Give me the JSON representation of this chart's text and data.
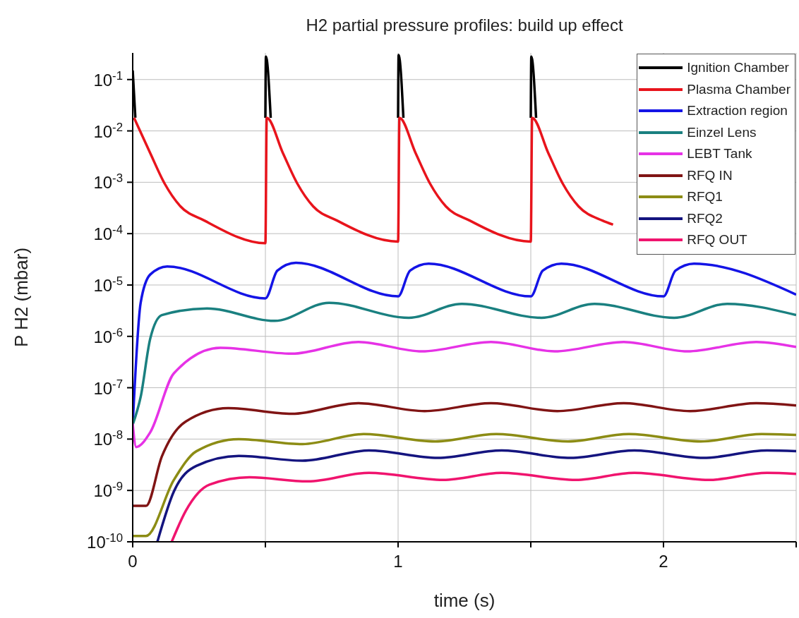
{
  "chart_data": {
    "type": "line",
    "title": "H2 partial pressure profiles: build up effect",
    "xlabel": "time (s)",
    "ylabel": "P H2 (mbar)",
    "log": "y",
    "grid": true,
    "legend": "top right",
    "marker": "none",
    "line_style": "solid",
    "xlim": [
      0,
      2.5
    ],
    "xticks": [
      0,
      {
        "value": 0.5,
        "label": null
      },
      1,
      {
        "value": 1.5,
        "label": null
      },
      2,
      {
        "value": 2.5,
        "label": null
      }
    ],
    "ylim": [
      1e-10,
      0.33
    ],
    "yticks": [
      {
        "value": 1e-10,
        "label": "10$^{-10}$"
      },
      {
        "value": 1e-09,
        "label": "10$^{-9}$"
      },
      {
        "value": 1e-08,
        "label": "10$^{-8}$"
      },
      {
        "value": 1e-07,
        "label": "10$^{-7}$"
      },
      {
        "value": 1e-06,
        "label": "10$^{-6}$"
      },
      {
        "value": 1e-05,
        "label": "10$^{-5}$"
      },
      {
        "value": 0.0001,
        "label": "10$^{-4}$"
      },
      {
        "value": 0.001,
        "label": "10$^{-3}$"
      },
      {
        "value": 0.01,
        "label": "10$^{-2}$"
      },
      {
        "value": 0.1,
        "label": "10$^{-1}$"
      }
    ],
    "series": [
      {
        "name": "Ignition Chamber",
        "color": "#000000",
        "x": [
          0,
          0.01,
          0.011,
          0.5,
          0.502,
          0.52,
          0.521,
          1.0,
          1.002,
          1.02,
          1.021,
          1.5,
          1.502,
          1.52
        ],
        "values": [
          0.15,
          0.018,
          null,
          0.018,
          0.28,
          0.018,
          null,
          0.018,
          0.3,
          0.018,
          null,
          0.018,
          0.28,
          0.018
        ]
      },
      {
        "name": "Plasma Chamber",
        "color": "#e8141c",
        "x": [
          0.005,
          0.066,
          0.12,
          0.18,
          0.27,
          0.5,
          0.505,
          0.566,
          0.62,
          0.68,
          0.77,
          1.0,
          1.005,
          1.066,
          1.12,
          1.18,
          1.27,
          1.5,
          1.505,
          1.566,
          1.62,
          1.68,
          1.77,
          1.81
        ],
        "values": [
          0.018,
          0.0037,
          0.00095,
          0.00034,
          0.00018,
          6.5e-05,
          0.018,
          0.0037,
          0.00095,
          0.00034,
          0.00018,
          7e-05,
          0.018,
          0.0037,
          0.00095,
          0.00034,
          0.00018,
          7e-05,
          0.018,
          0.0037,
          0.00095,
          0.00034,
          0.00018,
          0.00015
        ]
      },
      {
        "name": "Extraction region",
        "color": "#1414e6",
        "x": [
          0,
          0.03,
          0.066,
          0.13,
          0.5,
          0.545,
          0.615,
          1.0,
          1.045,
          1.115,
          1.5,
          1.545,
          1.615,
          2.0,
          2.045,
          2.115,
          2.5
        ],
        "values": [
          1.9e-08,
          4.5e-06,
          1.6e-05,
          2.3e-05,
          5.5e-06,
          1.9e-05,
          2.7e-05,
          6e-06,
          1.9e-05,
          2.6e-05,
          6e-06,
          1.9e-05,
          2.6e-05,
          6e-06,
          1.9e-05,
          2.6e-05,
          6.5e-06
        ]
      },
      {
        "name": "Einzel Lens",
        "color": "#1a8080",
        "x": [
          0,
          0.03,
          0.066,
          0.11,
          0.28,
          0.535,
          0.74,
          1.04,
          1.24,
          1.54,
          1.74,
          2.04,
          2.24,
          2.5
        ],
        "values": [
          1.9e-08,
          6.6e-08,
          9e-07,
          2.6e-06,
          3.5e-06,
          2e-06,
          4.5e-06,
          2.3e-06,
          4.3e-06,
          2.3e-06,
          4.3e-06,
          2.3e-06,
          4.3e-06,
          2.6e-06
        ]
      },
      {
        "name": "LEBT Tank",
        "color": "#e632e6",
        "x": [
          0,
          0.013,
          0.066,
          0.155,
          0.33,
          0.6,
          0.85,
          1.09,
          1.35,
          1.59,
          1.85,
          2.09,
          2.35,
          2.5
        ],
        "values": [
          2e-08,
          7e-09,
          1.35e-08,
          1.9e-07,
          6e-07,
          4.6e-07,
          7.8e-07,
          5.1e-07,
          7.8e-07,
          5.1e-07,
          7.8e-07,
          5.1e-07,
          7.8e-07,
          6.2e-07
        ]
      },
      {
        "name": "RFQ IN",
        "color": "#801414",
        "x": [
          0,
          0.05,
          0.11,
          0.2,
          0.36,
          0.6,
          0.85,
          1.1,
          1.35,
          1.6,
          1.85,
          2.1,
          2.35,
          2.5
        ],
        "values": [
          5e-10,
          5e-10,
          4.6e-09,
          2.2e-08,
          4e-08,
          3.1e-08,
          5e-08,
          3.5e-08,
          5e-08,
          3.5e-08,
          5e-08,
          3.5e-08,
          5e-08,
          4.5e-08
        ]
      },
      {
        "name": "RFQ1",
        "color": "#8c8c14",
        "x": [
          0,
          0.05,
          0.155,
          0.24,
          0.4,
          0.64,
          0.87,
          1.14,
          1.37,
          1.64,
          1.87,
          2.14,
          2.37,
          2.5
        ],
        "values": [
          1.3e-10,
          1.3e-10,
          1.6e-09,
          5.8e-09,
          1e-08,
          8e-09,
          1.25e-08,
          9e-09,
          1.25e-08,
          9e-09,
          1.25e-08,
          9e-09,
          1.25e-08,
          1.2e-08
        ]
      },
      {
        "name": "RFQ2",
        "color": "#14147f",
        "x": [
          0.093,
          0.155,
          0.24,
          0.4,
          0.64,
          0.89,
          1.15,
          1.39,
          1.65,
          1.89,
          2.15,
          2.39,
          2.5
        ],
        "values": [
          1e-10,
          9.5e-10,
          3e-09,
          4.7e-09,
          3.8e-09,
          6e-09,
          4.3e-09,
          6e-09,
          4.3e-09,
          6e-09,
          4.3e-09,
          6e-09,
          5.8e-09
        ]
      },
      {
        "name": "RFQ OUT",
        "color": "#f0146e",
        "x": [
          0.147,
          0.2,
          0.29,
          0.44,
          0.66,
          0.89,
          1.17,
          1.39,
          1.67,
          1.89,
          2.17,
          2.39,
          2.5
        ],
        "values": [
          1e-10,
          4e-10,
          1.3e-09,
          1.8e-09,
          1.5e-09,
          2.2e-09,
          1.6e-09,
          2.2e-09,
          1.6e-09,
          2.2e-09,
          1.6e-09,
          2.2e-09,
          2.1e-09
        ]
      }
    ]
  }
}
